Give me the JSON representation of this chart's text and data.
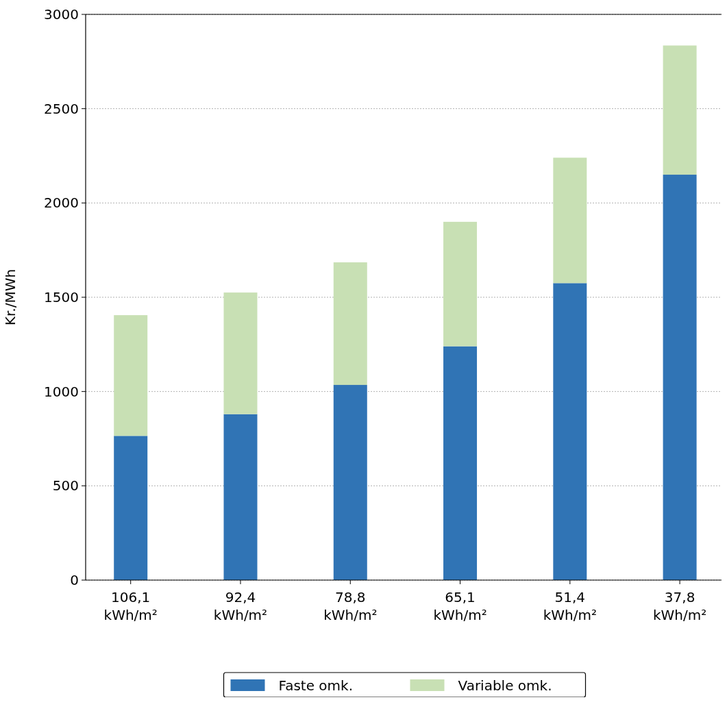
{
  "chart_data": {
    "type": "bar",
    "stacked": true,
    "ylabel": "Kr./MWh",
    "categories": [
      "106,1 kWh/m²",
      "92,4 kWh/m²",
      "78,8 kWh/m²",
      "65,1 kWh/m²",
      "51,4 kWh/m²",
      "37,8 kWh/m²"
    ],
    "series": [
      {
        "name": "Faste omk.",
        "color": "#3074b5",
        "values": [
          765,
          880,
          1035,
          1240,
          1575,
          2150
        ]
      },
      {
        "name": "Variable omk.",
        "color": "#c8e0b4",
        "values": [
          640,
          645,
          650,
          660,
          665,
          685
        ]
      }
    ],
    "ylim": [
      0,
      3000
    ],
    "yticks": [
      0,
      500,
      1000,
      1500,
      2000,
      2500,
      3000
    ],
    "grid": "y",
    "legend": "bottom"
  }
}
